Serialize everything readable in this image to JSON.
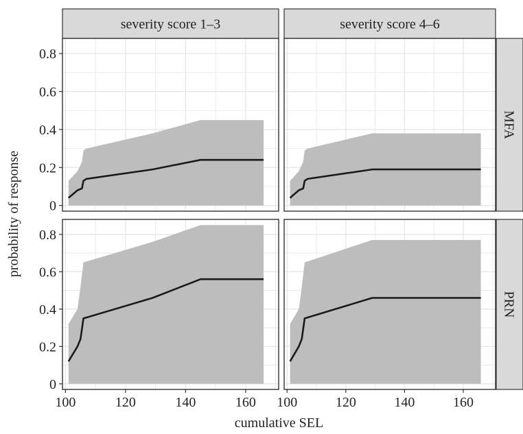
{
  "chart_data": {
    "type": "area",
    "xlabel": "cumulative SEL",
    "ylabel": "probability of response",
    "xlim": [
      99,
      171
    ],
    "x_ticks": [
      100,
      120,
      140,
      160
    ],
    "x_tick_labels": [
      "100",
      "120",
      "140",
      "160"
    ],
    "grid": true,
    "columns": [
      "severity score 1–3",
      "severity score 4–6"
    ],
    "rows": [
      {
        "label": "MFA",
        "ylim": [
          -0.03,
          0.88
        ],
        "y_ticks": [
          0,
          0.2,
          0.4,
          0.6,
          0.8
        ],
        "y_tick_labels": [
          "0",
          "0.2",
          "0.4",
          "0.6",
          "0.8"
        ]
      },
      {
        "label": "PRN",
        "ylim": [
          -0.03,
          0.88
        ],
        "y_ticks": [
          0,
          0.2,
          0.4,
          0.6,
          0.8
        ],
        "y_tick_labels": [
          "0",
          "0.2",
          "0.4",
          "0.6",
          "0.8"
        ]
      }
    ],
    "panels": [
      {
        "row": "MFA",
        "column": "severity score 1–3",
        "line": [
          [
            101,
            0.04
          ],
          [
            104,
            0.08
          ],
          [
            105.5,
            0.09
          ],
          [
            106,
            0.13
          ],
          [
            107,
            0.14
          ],
          [
            129,
            0.19
          ],
          [
            145,
            0.24
          ],
          [
            166,
            0.24
          ]
        ],
        "band_upper": [
          [
            101,
            0.13
          ],
          [
            104,
            0.18
          ],
          [
            105.5,
            0.23
          ],
          [
            106,
            0.29
          ],
          [
            107,
            0.3
          ],
          [
            129,
            0.38
          ],
          [
            145,
            0.45
          ],
          [
            166,
            0.45
          ]
        ],
        "band_lower": [
          [
            101,
            0.0
          ],
          [
            166,
            0.0
          ]
        ]
      },
      {
        "row": "MFA",
        "column": "severity score 4–6",
        "line": [
          [
            101,
            0.04
          ],
          [
            104,
            0.08
          ],
          [
            105.5,
            0.09
          ],
          [
            106,
            0.13
          ],
          [
            107,
            0.14
          ],
          [
            129,
            0.19
          ],
          [
            145,
            0.19
          ],
          [
            166,
            0.19
          ]
        ],
        "band_upper": [
          [
            101,
            0.13
          ],
          [
            104,
            0.18
          ],
          [
            105.5,
            0.23
          ],
          [
            106,
            0.29
          ],
          [
            107,
            0.3
          ],
          [
            129,
            0.38
          ],
          [
            145,
            0.38
          ],
          [
            166,
            0.38
          ]
        ],
        "band_lower": [
          [
            101,
            0.0
          ],
          [
            166,
            0.0
          ]
        ]
      },
      {
        "row": "PRN",
        "column": "severity score 1–3",
        "line": [
          [
            101,
            0.12
          ],
          [
            104,
            0.2
          ],
          [
            105,
            0.24
          ],
          [
            106,
            0.35
          ],
          [
            129,
            0.46
          ],
          [
            145,
            0.56
          ],
          [
            166,
            0.56
          ]
        ],
        "band_upper": [
          [
            101,
            0.32
          ],
          [
            104,
            0.4
          ],
          [
            105,
            0.52
          ],
          [
            106,
            0.65
          ],
          [
            129,
            0.76
          ],
          [
            145,
            0.85
          ],
          [
            166,
            0.85
          ]
        ],
        "band_lower": [
          [
            101,
            0.0
          ],
          [
            166,
            0.0
          ]
        ]
      },
      {
        "row": "PRN",
        "column": "severity score 4–6",
        "line": [
          [
            101,
            0.12
          ],
          [
            104,
            0.2
          ],
          [
            105,
            0.24
          ],
          [
            106,
            0.35
          ],
          [
            129,
            0.46
          ],
          [
            145,
            0.46
          ],
          [
            166,
            0.46
          ]
        ],
        "band_upper": [
          [
            101,
            0.32
          ],
          [
            104,
            0.4
          ],
          [
            105,
            0.52
          ],
          [
            106,
            0.65
          ],
          [
            129,
            0.77
          ],
          [
            145,
            0.77
          ],
          [
            166,
            0.77
          ]
        ],
        "band_lower": [
          [
            101,
            0.0
          ],
          [
            166,
            0.0
          ]
        ]
      }
    ],
    "colors": {
      "band": "#bdbdbd",
      "line": "#1a1a1a",
      "grid": "#e6e6e6",
      "strip": "#d9d9d9",
      "border": "#333333"
    }
  }
}
